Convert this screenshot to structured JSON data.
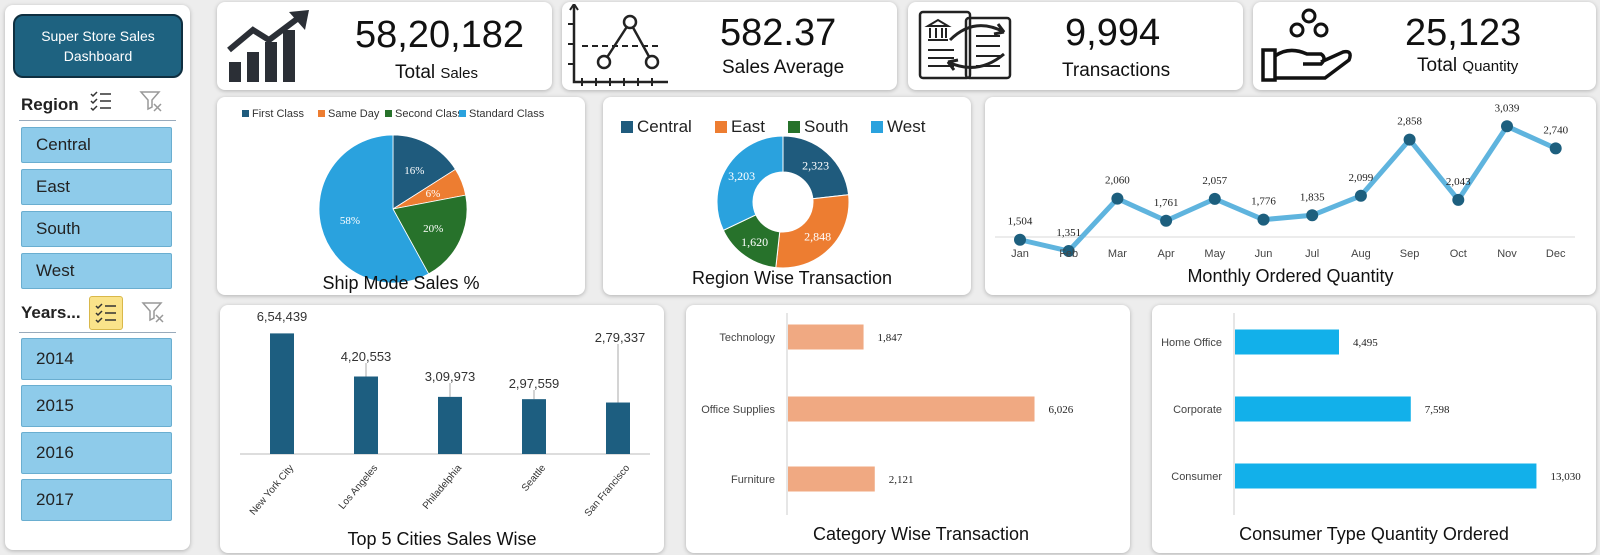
{
  "sidebar": {
    "title": "Super Store Sales Dashboard",
    "region_label": "Region",
    "regions": [
      "Central",
      "East",
      "South",
      "West"
    ],
    "years_label": "Years...",
    "years": [
      "2014",
      "2015",
      "2016",
      "2017"
    ]
  },
  "kpis": [
    {
      "value": "58,20,182",
      "label": "Total",
      "label_small": "Sales",
      "icon": "growth-chart-icon"
    },
    {
      "value": "582.37",
      "label": "Sales Average",
      "label_small": "",
      "icon": "line-average-icon"
    },
    {
      "value": "9,994",
      "label": "Transactions",
      "label_small": "",
      "icon": "transaction-exchange-icon"
    },
    {
      "value": "25,123",
      "label": "Total",
      "label_small": "Quantity",
      "icon": "hand-coins-icon"
    }
  ],
  "chart_data": [
    {
      "type": "pie",
      "title": "Ship Mode Sales %",
      "categories": [
        "First Class",
        "Same Day",
        "Second Class",
        "Standard Class"
      ],
      "values": [
        16,
        6,
        20,
        58
      ],
      "labels": [
        "16%",
        "6%",
        "20%",
        "58%"
      ],
      "colors": [
        "#1f5b7d",
        "#ed7d31",
        "#27722b",
        "#2aa2de"
      ],
      "legend": "top"
    },
    {
      "type": "pie",
      "subtype": "donut",
      "title": "Region Wise Transaction",
      "categories": [
        "Central",
        "East",
        "South",
        "West"
      ],
      "values": [
        2323,
        2848,
        1620,
        3203
      ],
      "labels": [
        "2,323",
        "2,848",
        "1,620",
        "3,203"
      ],
      "colors": [
        "#1f5b7d",
        "#ed7d31",
        "#27722b",
        "#2aa2de"
      ],
      "legend": "top"
    },
    {
      "type": "line",
      "title": "Monthly Ordered Quantity",
      "categories": [
        "Jan",
        "Feb",
        "Mar",
        "Apr",
        "May",
        "Jun",
        "Jul",
        "Aug",
        "Sep",
        "Oct",
        "Nov",
        "Dec"
      ],
      "values": [
        1504,
        1351,
        2060,
        1761,
        2057,
        1776,
        1835,
        2099,
        2858,
        2043,
        3039,
        2740
      ],
      "labels": [
        "1,504",
        "1,351",
        "2,060",
        "1,761",
        "2,057",
        "1,776",
        "1,835",
        "2,099",
        "2,858",
        "2,043",
        "3,039",
        "2,740"
      ],
      "ylim": [
        1000,
        3300
      ]
    },
    {
      "type": "bar",
      "title": "Top 5 Cities Sales Wise",
      "categories": [
        "New York City",
        "Los Angeles",
        "Philadelphia",
        "Seattle",
        "San Francisco"
      ],
      "values": [
        654439,
        420553,
        309973,
        297559,
        279337
      ],
      "labels": [
        "6,54,439",
        "4,20,553",
        "3,09,973",
        "2,97,559",
        "2,79,337"
      ],
      "bar_heights": [
        654439,
        420553,
        309973,
        297559,
        279337
      ],
      "ylim": [
        0,
        700000
      ]
    },
    {
      "type": "bar",
      "orientation": "horizontal",
      "title": "Category Wise Transaction",
      "categories": [
        "Technology",
        "Office Supplies",
        "Furniture"
      ],
      "values": [
        1847,
        6026,
        2121
      ],
      "labels": [
        "1,847",
        "6,026",
        "2,121"
      ],
      "xlim": [
        0,
        6600
      ],
      "color": "#f0a982"
    },
    {
      "type": "bar",
      "orientation": "horizontal",
      "title": "Consumer Type Quantity Ordered",
      "categories": [
        "Home Office",
        "Corporate",
        "Consumer"
      ],
      "values": [
        4495,
        7598,
        13030
      ],
      "labels": [
        "4,495",
        "7,598",
        "13,030"
      ],
      "xlim": [
        0,
        13400
      ],
      "color": "#12b0ea"
    }
  ]
}
